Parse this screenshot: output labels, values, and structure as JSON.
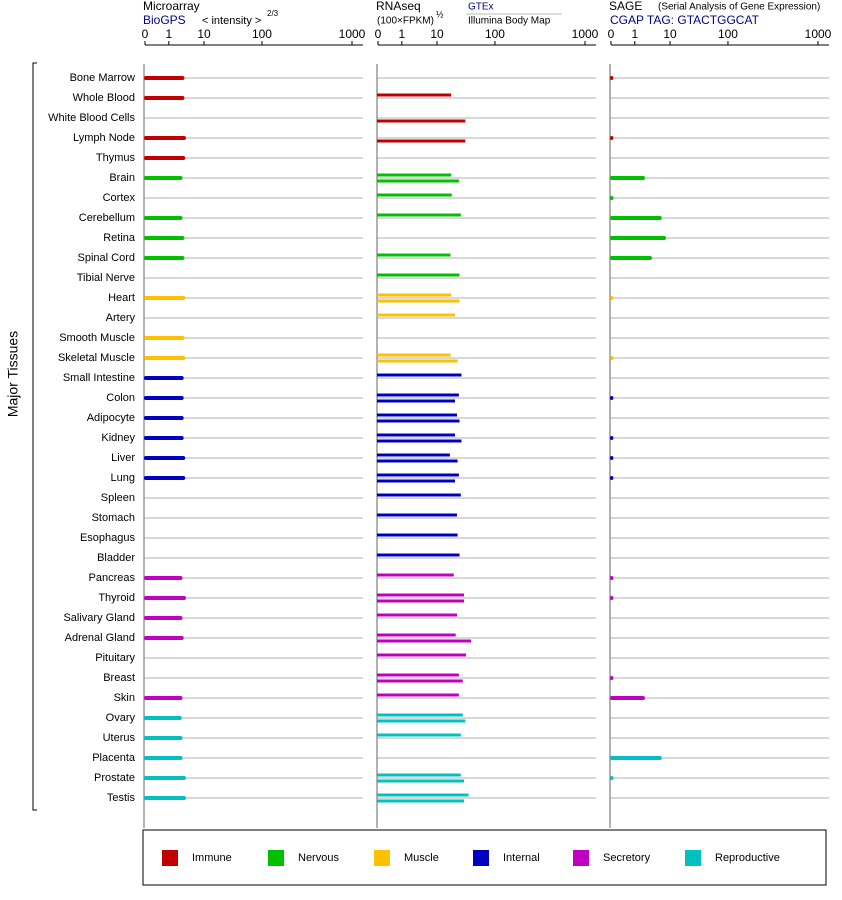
{
  "chart_data": {
    "type": "bar",
    "y_label": "Major Tissues",
    "groups": [
      {
        "name": "Immune",
        "color": "#c00000",
        "categories": [
          "Bone Marrow",
          "Whole Blood",
          "White Blood Cells",
          "Lymph Node",
          "Thymus"
        ]
      },
      {
        "name": "Nervous",
        "color": "#00c000",
        "categories": [
          "Brain",
          "Cortex",
          "Cerebellum",
          "Retina",
          "Spinal Cord",
          "Tibial Nerve"
        ]
      },
      {
        "name": "Muscle",
        "color": "#ffc000",
        "categories": [
          "Heart",
          "Artery",
          "Smooth Muscle",
          "Skeletal Muscle"
        ]
      },
      {
        "name": "Internal",
        "color": "#0000c0",
        "categories": [
          "Small Intestine",
          "Colon",
          "Adipocyte",
          "Kidney",
          "Liver",
          "Lung",
          "Spleen",
          "Stomach",
          "Esophagus",
          "Bladder"
        ]
      },
      {
        "name": "Secretory",
        "color": "#c000c0",
        "categories": [
          "Pancreas",
          "Thyroid",
          "Salivary Gland",
          "Adrenal Gland",
          "Pituitary",
          "Breast",
          "Skin"
        ]
      },
      {
        "name": "Reproductive",
        "color": "#00c0c0",
        "categories": [
          "Ovary",
          "Uterus",
          "Placenta",
          "Prostate",
          "Testis"
        ]
      }
    ],
    "panels": [
      {
        "title": "Microarray",
        "axis_label": "< intensity >",
        "axis_label_exponent": "2/3",
        "xlim": [
          0,
          1000
        ],
        "xticks": [
          0,
          1,
          10,
          100,
          1000
        ],
        "series": [
          {
            "name": "BioGPS",
            "values": [
              5,
              5,
              null,
              5.4,
              5.2,
              4.5,
              null,
              4.5,
              5,
              5,
              null,
              5.2,
              null,
              5,
              5.2,
              4.8,
              4.8,
              4.8,
              4.8,
              5.2,
              5.2,
              null,
              null,
              null,
              null,
              4.5,
              5.4,
              4.5,
              4.8,
              null,
              null,
              4.5,
              4.3,
              4.5,
              4.5,
              5.4,
              5.4
            ]
          }
        ]
      },
      {
        "title": "RNAseq",
        "axis_label": "(100×FPKM)",
        "axis_label_exponent": "½",
        "xlim": [
          0,
          1000
        ],
        "xticks": [
          0,
          1,
          10,
          100,
          1000
        ],
        "series": [
          {
            "name": "GTEx",
            "values": [
              null,
              32,
              null,
              null,
              null,
              32,
              33,
              47,
              null,
              31,
              45,
              32,
              38,
              null,
              31,
              48,
              44,
              41,
              38,
              30,
              44,
              47,
              41,
              42,
              45,
              36,
              52,
              41,
              39,
              55,
              44,
              44,
              50,
              47,
              null,
              47,
              59
            ]
          },
          {
            "name": "Illumina Body Map",
            "values": [
              null,
              null,
              54,
              54,
              null,
              44,
              null,
              null,
              null,
              null,
              null,
              45,
              null,
              null,
              42,
              null,
              38,
              45,
              48,
              42,
              38,
              null,
              null,
              null,
              null,
              null,
              52,
              null,
              63,
              null,
              50,
              null,
              54,
              null,
              null,
              52,
              52
            ]
          }
        ]
      },
      {
        "title": "SAGE",
        "axis_label": "(Serial Analysis of Gene Expression)",
        "xlim": [
          0,
          1000
        ],
        "xticks": [
          0,
          1,
          10,
          100,
          1000
        ],
        "series": [
          {
            "name": "CGAP TAG: GTACTGGCAT",
            "values": [
              0.1,
              null,
              null,
              0.1,
              null,
              3.6,
              0.1,
              7.9,
              9,
              5.4,
              null,
              0.1,
              null,
              null,
              0.1,
              null,
              0.1,
              null,
              0.1,
              0.1,
              0.1,
              null,
              null,
              null,
              null,
              0.1,
              0.1,
              null,
              null,
              null,
              0.1,
              3.6,
              null,
              null,
              7.9,
              0.1,
              null
            ]
          }
        ]
      }
    ]
  }
}
